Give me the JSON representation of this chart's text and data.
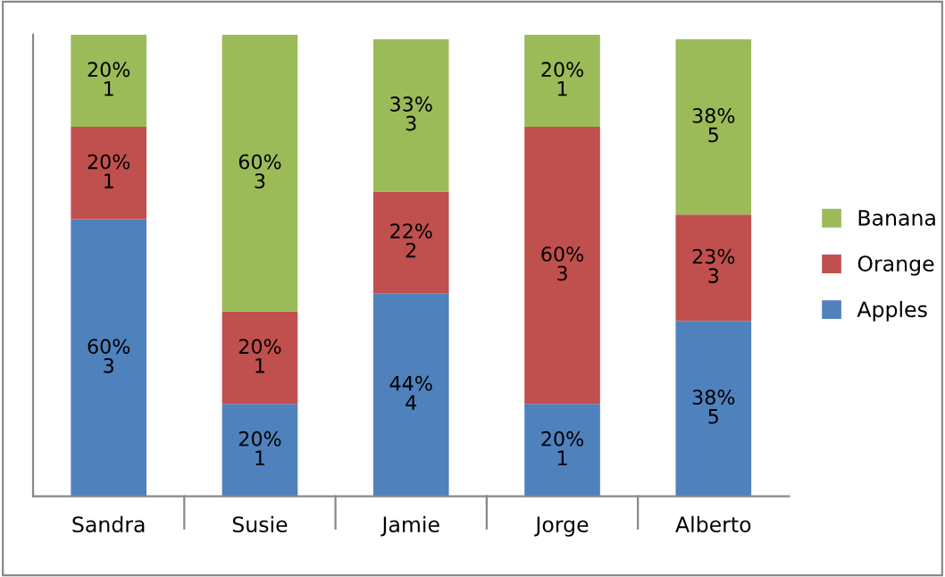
{
  "chart_data": {
    "type": "bar",
    "stacked": true,
    "categories": [
      "Sandra",
      "Susie",
      "Jamie",
      "Jorge",
      "Alberto"
    ],
    "series": [
      {
        "name": "Apples",
        "color": "#4f81bd",
        "values": [
          60,
          20,
          44,
          20,
          38
        ],
        "value_labels": [
          "60%\n3",
          "20%\n1",
          "44%\n4",
          "20%\n1",
          "38%\n5"
        ]
      },
      {
        "name": "Orange",
        "color": "#c0504d",
        "values": [
          20,
          20,
          22,
          60,
          23
        ],
        "value_labels": [
          "20%\n1",
          "20%\n1",
          "22%\n2",
          "60%\n3",
          "23%\n3"
        ]
      },
      {
        "name": "Banana",
        "color": "#9bbb59",
        "values": [
          20,
          60,
          33,
          20,
          38
        ],
        "value_labels": [
          "20%\n1",
          "60%\n3",
          "33%\n3",
          "20%\n1",
          "38%\n5"
        ]
      }
    ],
    "legend": "right",
    "grid": false
  }
}
